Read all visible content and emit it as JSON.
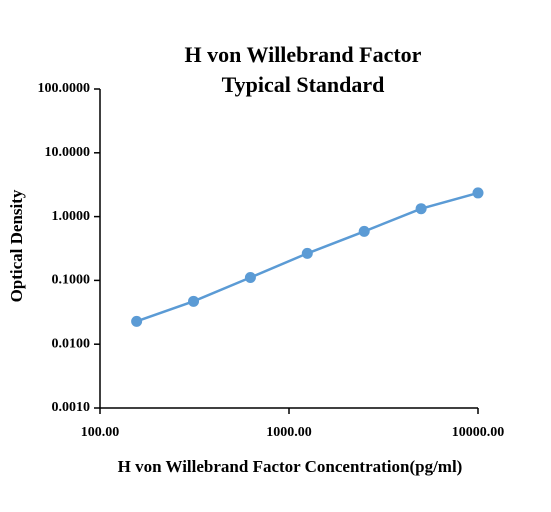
{
  "chart_data": {
    "type": "line",
    "title": [
      "H von Willebrand Factor",
      "Typical Standard"
    ],
    "x_label": "H von Willebrand Factor Concentration(pg/ml)",
    "y_label": "Optical Density",
    "x": [
      156.25,
      312.5,
      625,
      1250,
      2500,
      5000,
      10000
    ],
    "series": [
      {
        "color": "#5b9bd5",
        "values": [
          0.0228,
          0.047,
          0.111,
          0.265,
          0.586,
          1.33,
          2.35
        ]
      }
    ],
    "xscale": "log",
    "yscale": "log",
    "xlim": [
      100,
      10000
    ],
    "ylim": [
      0.001,
      100
    ],
    "xticks": [
      {
        "value": 100,
        "label": "100.00"
      },
      {
        "value": 1000,
        "label": "1000.00"
      },
      {
        "value": 10000,
        "label": "10000.00"
      }
    ],
    "yticks": [
      {
        "value": 0.001,
        "label": "0.0010"
      },
      {
        "value": 0.01,
        "label": "0.0100"
      },
      {
        "value": 0.1,
        "label": "0.1000"
      },
      {
        "value": 1,
        "label": "1.0000"
      },
      {
        "value": 10,
        "label": "10.0000"
      },
      {
        "value": 100,
        "label": "100.0000"
      }
    ]
  }
}
